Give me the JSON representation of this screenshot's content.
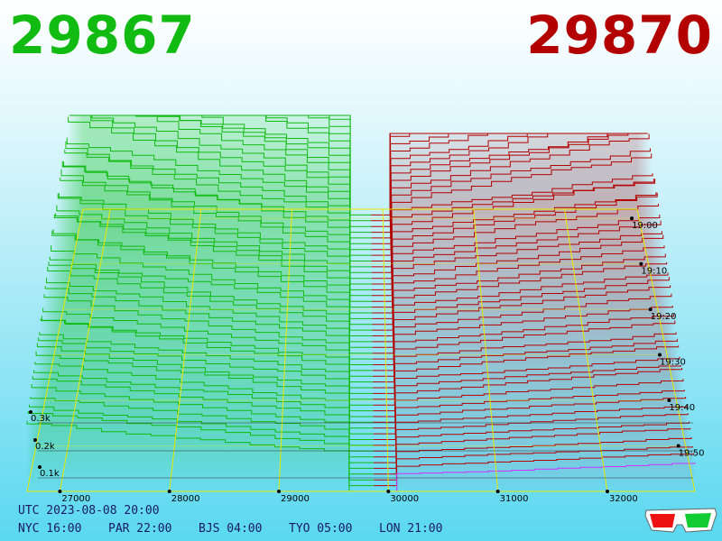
{
  "header": {
    "bid_price": "29867",
    "ask_price": "29870"
  },
  "footer": {
    "utc": "UTC 2023-08-08 20:00",
    "zones": [
      "NYC 16:00",
      "PAR 22:00",
      "BJS 04:00",
      "TYO 05:00",
      "LON 21:00"
    ]
  },
  "icons": [
    "3d-glasses-icon"
  ],
  "colors": {
    "bid": "#11bb11",
    "ask": "#b30000",
    "guide": "#e8e800",
    "highlight_series": "#cc33ff"
  },
  "chart_data": {
    "type": "area",
    "price_ticks": [
      "27000",
      "28000",
      "29000",
      "30000",
      "31000",
      "32000"
    ],
    "price_tick_values": [
      27000,
      28000,
      29000,
      30000,
      31000,
      32000
    ],
    "price_range": [
      26700,
      32800
    ],
    "mid_price": 29868,
    "volume_ticks": [
      "0.1k",
      "0.2k",
      "0.3k"
    ],
    "volume_tick_values": [
      100,
      200,
      300
    ],
    "time_ticks": [
      "19:00",
      "19:10",
      "19:20",
      "19:30",
      "19:40",
      "19:50"
    ],
    "time_range": [
      "18:55",
      "20:00"
    ],
    "snapshots": 50,
    "bid_depth_range": [
      80,
      500
    ],
    "ask_depth_range": [
      25,
      420
    ],
    "grid": true,
    "series": [
      {
        "side": "bid",
        "color": "#11bb11"
      },
      {
        "side": "ask",
        "color": "#b30000"
      }
    ]
  }
}
